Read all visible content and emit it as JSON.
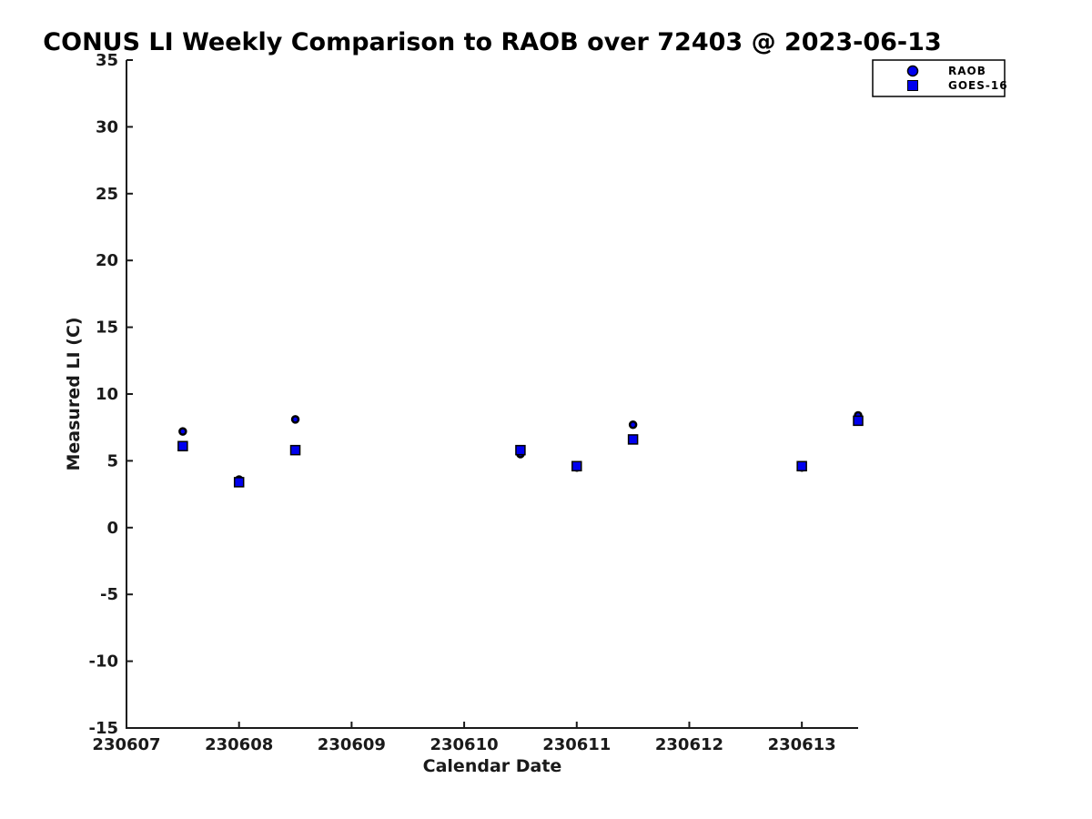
{
  "title": "CONUS LI Weekly Comparison to RAOB over 72403 @ 2023-06-13",
  "colors": {
    "marker_blue": "#0000EE",
    "marker_edge": "#000000",
    "axis": "#1a1a1a",
    "background": "#ffffff"
  },
  "legend": {
    "items": [
      {
        "label": "RAOB",
        "marker": "circle"
      },
      {
        "label": "GOES-16",
        "marker": "square"
      }
    ]
  },
  "chart_data": {
    "type": "scatter",
    "title": "CONUS LI Weekly Comparison to RAOB over 72403 @ 2023-06-13",
    "xlabel": "Calendar Date",
    "ylabel": "Measured LI (C)",
    "xlim": [
      230607,
      230613.5
    ],
    "ylim": [
      -15,
      35
    ],
    "xticks": [
      230607,
      230608,
      230609,
      230610,
      230611,
      230612,
      230613
    ],
    "xticklabels": [
      "230607",
      "230608",
      "230609",
      "230610",
      "230611",
      "230612",
      "230613"
    ],
    "yticks": [
      35,
      30,
      25,
      20,
      15,
      10,
      5,
      0,
      -5,
      -10,
      -15
    ],
    "yticklabels": [
      "35",
      "30",
      "25",
      "20",
      "15",
      "10",
      "5",
      "0",
      "-5",
      "-10",
      "-15"
    ],
    "grid": false,
    "legend_position": "outside-top-right",
    "series": [
      {
        "name": "RAOB",
        "marker": "circle",
        "fill": "#0000EE",
        "edge": "#000000",
        "points": [
          [
            230607.5,
            7.2
          ],
          [
            230608.0,
            3.6
          ],
          [
            230608.5,
            8.1
          ],
          [
            230610.5,
            5.5
          ],
          [
            230611.0,
            4.5
          ],
          [
            230611.5,
            7.7
          ],
          [
            230613.0,
            4.5
          ],
          [
            230613.5,
            8.4
          ]
        ]
      },
      {
        "name": "GOES-16",
        "marker": "square",
        "fill": "#0000EE",
        "edge": "#000000",
        "points": [
          [
            230607.5,
            6.1
          ],
          [
            230608.0,
            3.4
          ],
          [
            230608.5,
            5.8
          ],
          [
            230610.5,
            5.8
          ],
          [
            230611.0,
            4.6
          ],
          [
            230611.5,
            6.6
          ],
          [
            230613.0,
            4.6
          ],
          [
            230613.5,
            8.0
          ]
        ]
      }
    ]
  }
}
